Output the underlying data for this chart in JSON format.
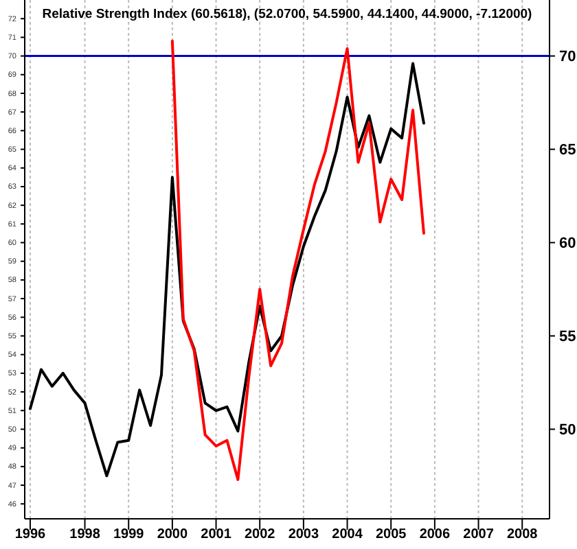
{
  "chart_data": {
    "type": "line",
    "title": "Relative Strength Index (60.5618), (52.0700, 54.5900, 44.1400, 44.9000, -7.12000)",
    "categories": [
      "1996",
      null,
      null,
      null,
      null,
      "1998",
      null,
      null,
      null,
      "1999",
      null,
      null,
      null,
      "2000",
      null,
      null,
      null,
      "2001",
      null,
      null,
      null,
      "2002",
      null,
      null,
      null,
      "2003",
      null,
      null,
      null,
      "2004",
      null,
      null,
      null,
      "2005",
      null,
      null,
      null,
      "2006",
      null,
      null,
      null,
      "2007",
      null,
      null,
      null,
      "2008",
      null,
      null
    ],
    "series": [
      {
        "color": "#000000",
        "values": [
          51.1,
          53.2,
          52.3,
          53.0,
          52.1,
          51.4,
          49.4,
          47.5,
          49.3,
          49.4,
          52.1,
          50.2,
          52.9,
          63.5,
          55.8,
          54.3,
          51.4,
          51.0,
          51.2,
          49.9,
          53.6,
          56.6,
          54.2,
          55.0,
          57.7,
          59.8,
          61.4,
          62.8,
          64.9,
          67.8,
          65.1,
          66.8,
          64.3,
          66.1,
          65.6,
          69.6,
          66.4,
          null,
          null,
          null,
          null,
          null,
          null,
          null,
          null,
          null,
          null,
          null
        ]
      },
      {
        "color": "#ff0000",
        "values": [
          null,
          null,
          null,
          null,
          null,
          null,
          null,
          null,
          null,
          null,
          null,
          null,
          null,
          70.8,
          55.9,
          54.2,
          49.7,
          49.1,
          49.4,
          47.3,
          52.8,
          57.5,
          53.4,
          54.6,
          58.2,
          60.7,
          63.1,
          64.9,
          67.5,
          70.4,
          64.3,
          66.4,
          61.1,
          63.4,
          62.3,
          67.1,
          60.5,
          null,
          null,
          null,
          null,
          null,
          null,
          null,
          null,
          null,
          null,
          null
        ]
      }
    ],
    "ylim": [
      45.2,
      73
    ],
    "yticks": [
      46,
      47,
      48,
      49,
      50,
      51,
      52,
      53,
      54,
      55,
      56,
      57,
      58,
      59,
      60,
      61,
      62,
      63,
      64,
      65,
      66,
      67,
      68,
      69,
      70,
      71,
      72
    ],
    "y2lim": [
      45.2,
      73
    ],
    "y2ticks": [
      50,
      55,
      60,
      65,
      70
    ],
    "ref_lines": [
      {
        "axis": "y",
        "value": 70,
        "color": "#0000cc"
      }
    ],
    "grid": "x",
    "marker": "none",
    "line_style": "solid"
  }
}
